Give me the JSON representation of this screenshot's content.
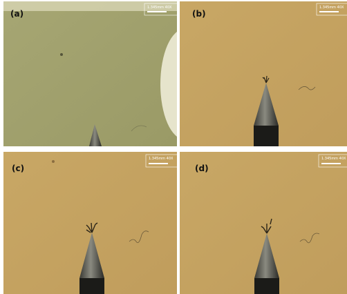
{
  "panels": [
    {
      "label": "(a)",
      "scale": "1.345mm 40X"
    },
    {
      "label": "(b)",
      "scale": "1.345mm 40X"
    },
    {
      "label": "(c)",
      "scale": "1.345mm 40X"
    },
    {
      "label": "(d)",
      "scale": "1.345mm 40X"
    }
  ]
}
